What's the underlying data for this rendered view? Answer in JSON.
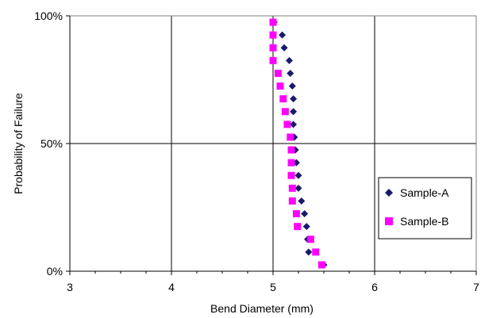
{
  "chart_data": {
    "type": "scatter",
    "title": "",
    "xlabel": "Bend Diameter (mm)",
    "ylabel": "Probability of Failure",
    "xlim": [
      3,
      7
    ],
    "ylim": [
      0,
      100
    ],
    "x_ticks": [
      "3",
      "4",
      "5",
      "6",
      "7"
    ],
    "y_ticks": [
      "0%",
      "50%",
      "100%"
    ],
    "grid": "major gridlines at x=4,5,6 and y=50%",
    "legend_position": "right",
    "series": [
      {
        "name": "Sample-A",
        "marker": "diamond",
        "color": "#1a1a6b",
        "points": [
          [
            5.01,
            97.5
          ],
          [
            5.09,
            92.5
          ],
          [
            5.11,
            87.5
          ],
          [
            5.16,
            82.5
          ],
          [
            5.17,
            77.5
          ],
          [
            5.19,
            72.5
          ],
          [
            5.2,
            67.5
          ],
          [
            5.2,
            62.5
          ],
          [
            5.2,
            57.5
          ],
          [
            5.21,
            52.5
          ],
          [
            5.22,
            47.5
          ],
          [
            5.23,
            42.5
          ],
          [
            5.25,
            37.5
          ],
          [
            5.25,
            32.5
          ],
          [
            5.28,
            27.5
          ],
          [
            5.31,
            22.5
          ],
          [
            5.33,
            17.5
          ],
          [
            5.34,
            12.5
          ],
          [
            5.35,
            7.5
          ],
          [
            5.5,
            2.5
          ]
        ]
      },
      {
        "name": "Sample-B",
        "marker": "square",
        "color": "#ff00ff",
        "points": [
          [
            5.0,
            97.5
          ],
          [
            5.0,
            92.5
          ],
          [
            5.0,
            87.5
          ],
          [
            5.0,
            82.5
          ],
          [
            5.05,
            77.5
          ],
          [
            5.07,
            72.5
          ],
          [
            5.1,
            67.5
          ],
          [
            5.12,
            62.5
          ],
          [
            5.14,
            57.5
          ],
          [
            5.17,
            52.5
          ],
          [
            5.18,
            47.5
          ],
          [
            5.18,
            42.5
          ],
          [
            5.18,
            37.5
          ],
          [
            5.19,
            32.5
          ],
          [
            5.19,
            27.5
          ],
          [
            5.23,
            22.5
          ],
          [
            5.24,
            17.5
          ],
          [
            5.37,
            12.5
          ],
          [
            5.42,
            7.5
          ],
          [
            5.48,
            2.5
          ]
        ]
      }
    ]
  }
}
